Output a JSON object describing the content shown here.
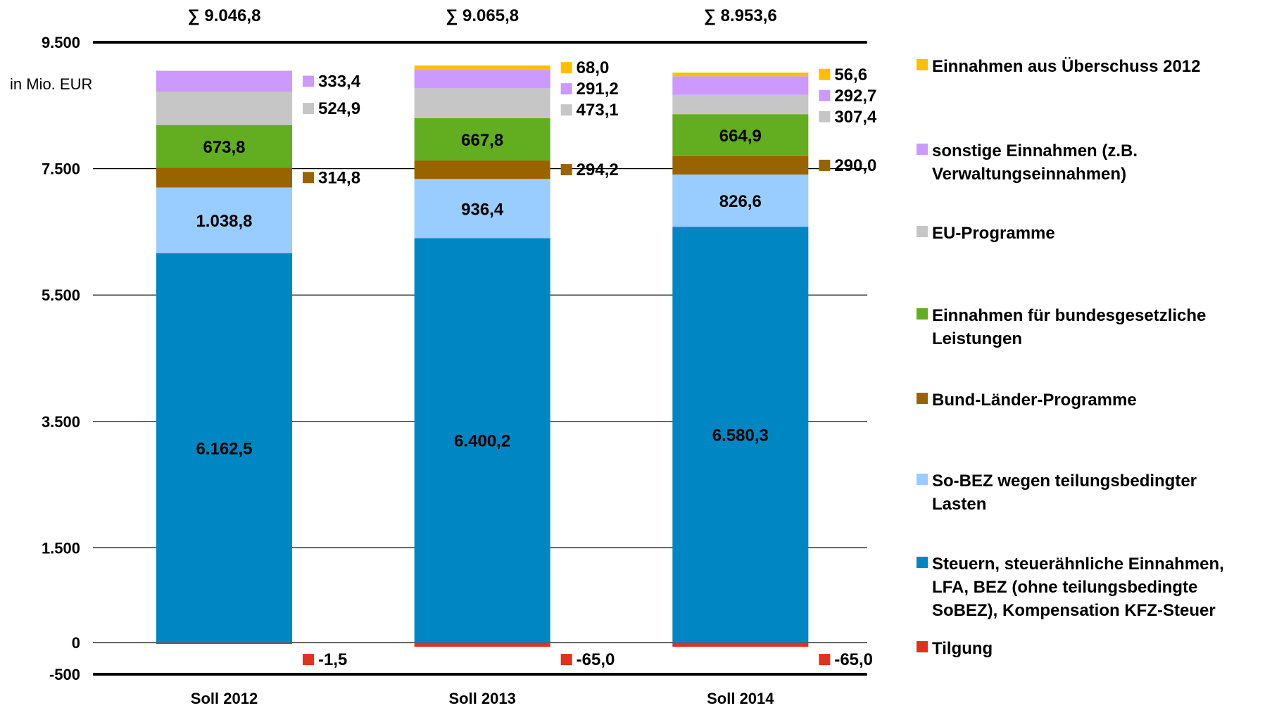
{
  "chart_data": {
    "type": "bar",
    "stacked": true,
    "unit_label": "in Mio. EUR",
    "categories": [
      "Soll 2012",
      "Soll 2013",
      "Soll 2014"
    ],
    "totals": [
      "∑ 9.046,8",
      "∑ 9.065,8",
      "∑ 8.953,6"
    ],
    "ylim": [
      -500,
      9500
    ],
    "y_ticks": [
      {
        "value": -500,
        "label": "-500"
      },
      {
        "value": 0,
        "label": "0"
      },
      {
        "value": 1500,
        "label": "1.500"
      },
      {
        "value": 3500,
        "label": "3.500"
      },
      {
        "value": 5500,
        "label": "5.500"
      },
      {
        "value": 7500,
        "label": "7.500"
      },
      {
        "value": 9500,
        "label": "9.500"
      }
    ],
    "series": [
      {
        "name": "Tilgung",
        "color": "#e0321c",
        "values": [
          -1.5,
          -65.0,
          -65.0
        ],
        "labels": [
          "-1,5",
          "-65,0",
          "-65,0"
        ],
        "label_pos": "outside"
      },
      {
        "name": "Steuern, steuerähnliche Einnahmen, LFA, BEZ (ohne teilungsbedingte SoBEZ), Kompensation KFZ-Steuer",
        "color": "#0086c3",
        "values": [
          6162.5,
          6400.2,
          6580.3
        ],
        "labels": [
          "6.162,5",
          "6.400,2",
          "6.580,3"
        ],
        "label_pos": "inside"
      },
      {
        "name": "So-BEZ wegen teilungsbedingter Lasten",
        "color": "#99ccff",
        "values": [
          1038.8,
          936.4,
          826.6
        ],
        "labels": [
          "1.038,8",
          "936,4",
          "826,6"
        ],
        "label_pos": "inside"
      },
      {
        "name": "Bund-Länder-Programme",
        "color": "#996300",
        "values": [
          314.8,
          294.2,
          290.0
        ],
        "labels": [
          "314,8",
          "294,2",
          "290,0"
        ],
        "label_pos": "outside"
      },
      {
        "name": "Einnahmen für bundesgesetzliche Leistungen",
        "color": "#63ad21",
        "values": [
          673.8,
          667.8,
          664.9
        ],
        "labels": [
          "673,8",
          "667,8",
          "664,9"
        ],
        "label_pos": "inside"
      },
      {
        "name": "EU-Programme",
        "color": "#c6c6c6",
        "values": [
          524.9,
          473.1,
          307.4
        ],
        "labels": [
          "524,9",
          "473,1",
          "307,4"
        ],
        "label_pos": "outside"
      },
      {
        "name": "sonstige Einnahmen (z.B. Verwaltungseinnahmen)",
        "color": "#cc99ff",
        "values": [
          333.4,
          291.2,
          292.7
        ],
        "labels": [
          "333,4",
          "291,2",
          "292,7"
        ],
        "label_pos": "outside"
      },
      {
        "name": "Einnahmen aus Überschuss 2012",
        "color": "#ffbf00",
        "values": [
          0,
          68.0,
          56.6
        ],
        "labels": [
          "",
          "68,0",
          "56,6"
        ],
        "label_pos": "outside"
      }
    ],
    "legend": {
      "position": "right",
      "items": [
        {
          "lines": [
            "Einnahmen aus Überschuss 2012"
          ],
          "color": "#ffbf00"
        },
        {
          "lines": [
            "sonstige Einnahmen (z.B.",
            "Verwaltungseinnahmen)"
          ],
          "color": "#cc99ff"
        },
        {
          "lines": [
            "EU-Programme"
          ],
          "color": "#c6c6c6"
        },
        {
          "lines": [
            "Einnahmen für bundesgesetzliche",
            "Leistungen"
          ],
          "color": "#63ad21"
        },
        {
          "lines": [
            "Bund-Länder-Programme"
          ],
          "color": "#996300"
        },
        {
          "lines": [
            "So-BEZ wegen teilungsbedingter",
            "Lasten"
          ],
          "color": "#99ccff"
        },
        {
          "lines": [
            "Steuern, steuerähnliche Einnahmen,",
            "LFA, BEZ (ohne teilungsbedingte",
            "SoBEZ), Kompensation KFZ-Steuer"
          ],
          "color": "#0086c3"
        },
        {
          "lines": [
            "Tilgung"
          ],
          "color": "#e0321c"
        }
      ]
    },
    "grid": true
  }
}
